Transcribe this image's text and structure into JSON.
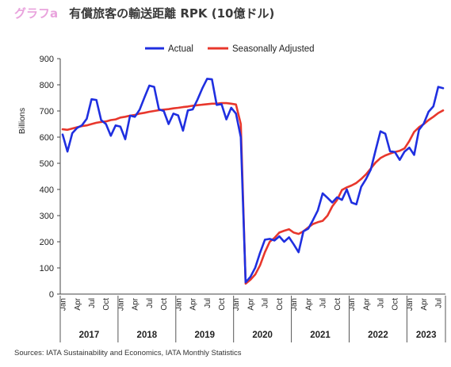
{
  "header": {
    "figure_label": "グラフa",
    "title": "有償旅客の輸送距離 RPK (10億ドル)"
  },
  "source": "Sources: IATA Sustainability and Economics, IATA Monthly Statistics",
  "colors": {
    "actual": "#1f2fe0",
    "seasonally_adjusted": "#e8372c"
  },
  "chart_data": {
    "type": "line",
    "title": "有償旅客の輸送距離 RPK (10億ドル)",
    "ylabel": "Billions",
    "xlabel": "",
    "ylim": [
      0,
      900
    ],
    "yticks": [
      0,
      100,
      200,
      300,
      400,
      500,
      600,
      700,
      800,
      900
    ],
    "grid": false,
    "legend_position": "top",
    "month_tick_labels": [
      "Jan",
      "Apr",
      "Jul",
      "Oct"
    ],
    "years": [
      "2017",
      "2018",
      "2019",
      "2020",
      "2021",
      "2022",
      "2023"
    ],
    "x_start": "2017-01",
    "x_end": "2023-08",
    "series": [
      {
        "name": "Actual",
        "values": [
          610,
          545,
          615,
          635,
          645,
          670,
          745,
          742,
          665,
          650,
          605,
          645,
          640,
          592,
          682,
          678,
          705,
          752,
          797,
          792,
          706,
          700,
          650,
          690,
          683,
          625,
          702,
          706,
          743,
          786,
          823,
          821,
          723,
          726,
          668,
          712,
          690,
          600,
          45,
          66,
          101,
          158,
          208,
          211,
          205,
          221,
          200,
          217,
          190,
          160,
          240,
          250,
          283,
          320,
          385,
          368,
          350,
          370,
          360,
          400,
          350,
          343,
          410,
          440,
          476,
          550,
          622,
          613,
          546,
          543,
          513,
          545,
          560,
          532,
          628,
          652,
          697,
          718,
          792,
          787
        ]
      },
      {
        "name": "Seasonally Adjusted",
        "values": [
          630,
          628,
          633,
          638,
          642,
          645,
          650,
          655,
          658,
          660,
          665,
          668,
          675,
          678,
          682,
          685,
          690,
          693,
          697,
          700,
          703,
          705,
          707,
          710,
          712,
          715,
          717,
          720,
          722,
          724,
          726,
          728,
          728,
          730,
          730,
          728,
          725,
          650,
          40,
          55,
          75,
          110,
          160,
          200,
          215,
          235,
          242,
          248,
          235,
          230,
          240,
          255,
          268,
          275,
          280,
          300,
          335,
          360,
          398,
          408,
          415,
          425,
          440,
          458,
          480,
          503,
          520,
          530,
          537,
          543,
          548,
          557,
          585,
          620,
          638,
          650,
          665,
          678,
          692,
          702
        ]
      }
    ]
  }
}
